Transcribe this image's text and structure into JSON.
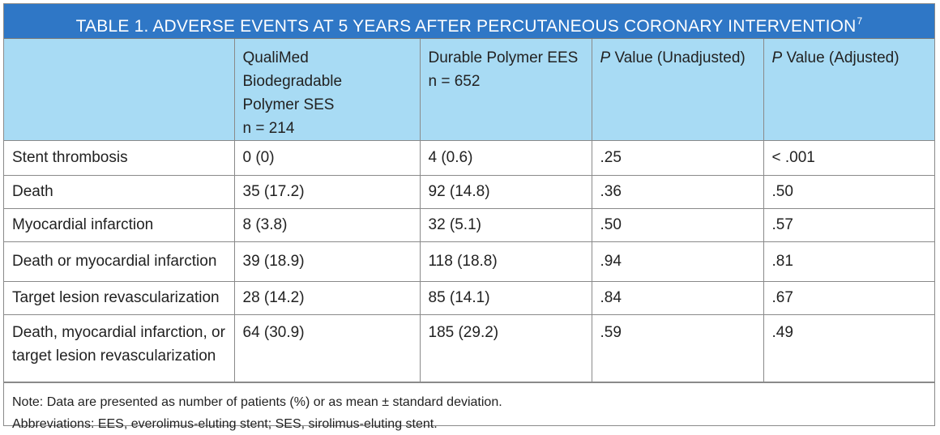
{
  "title": {
    "text": "TABLE 1.  ADVERSE EVENTS AT 5 YEARS AFTER PERCUTANEOUS CORONARY INTERVENTION",
    "superscript": "7"
  },
  "columns": [
    {
      "line1": "",
      "line2": "",
      "line3": ""
    },
    {
      "line1": "QualiMed Biodegradable",
      "line2": "Polymer SES",
      "line3": "n = 214"
    },
    {
      "line1": "Durable Polymer EES",
      "line2": "n = 652",
      "line3": ""
    },
    {
      "italic": "P",
      "rest": " Value (Unadjusted)"
    },
    {
      "italic": "P",
      "rest": " Value (Adjusted)"
    }
  ],
  "rows": [
    {
      "label1": "Stent thrombosis",
      "label2": "",
      "ses": "0 (0)",
      "ees": "4 (0.6)",
      "p_unadj": ".25",
      "p_adj": "< .001"
    },
    {
      "label1": "Death",
      "label2": "",
      "ses": "35 (17.2)",
      "ees": "92 (14.8)",
      "p_unadj": ".36",
      "p_adj": ".50"
    },
    {
      "label1": "Myocardial infarction",
      "label2": "",
      "ses": "8 (3.8)",
      "ees": "32 (5.1)",
      "p_unadj": ".50",
      "p_adj": ".57"
    },
    {
      "label1": "Death or myocardial infarction",
      "label2": "",
      "ses": "39 (18.9)",
      "ees": "118 (18.8)",
      "p_unadj": ".94",
      "p_adj": ".81"
    },
    {
      "label1": "Target lesion revascularization",
      "label2": "",
      "ses": "28 (14.2)",
      "ees": "85 (14.1)",
      "p_unadj": ".84",
      "p_adj": ".67"
    },
    {
      "label1": "Death, myocardial infarction, or",
      "label2": "target lesion revascularization",
      "ses": "64 (30.9)",
      "ees": "185 (29.2)",
      "p_unadj": ".59",
      "p_adj": ".49"
    }
  ],
  "notes": {
    "line1": "Note: Data are presented as number of patients (%) or as mean ± standard deviation.",
    "line2": "Abbreviations: EES, everolimus-eluting stent; SES, sirolimus-eluting stent."
  },
  "colors": {
    "title_bg": "#2f77c6",
    "header_bg": "#a8dbf4",
    "border": "#8a8a8a"
  }
}
